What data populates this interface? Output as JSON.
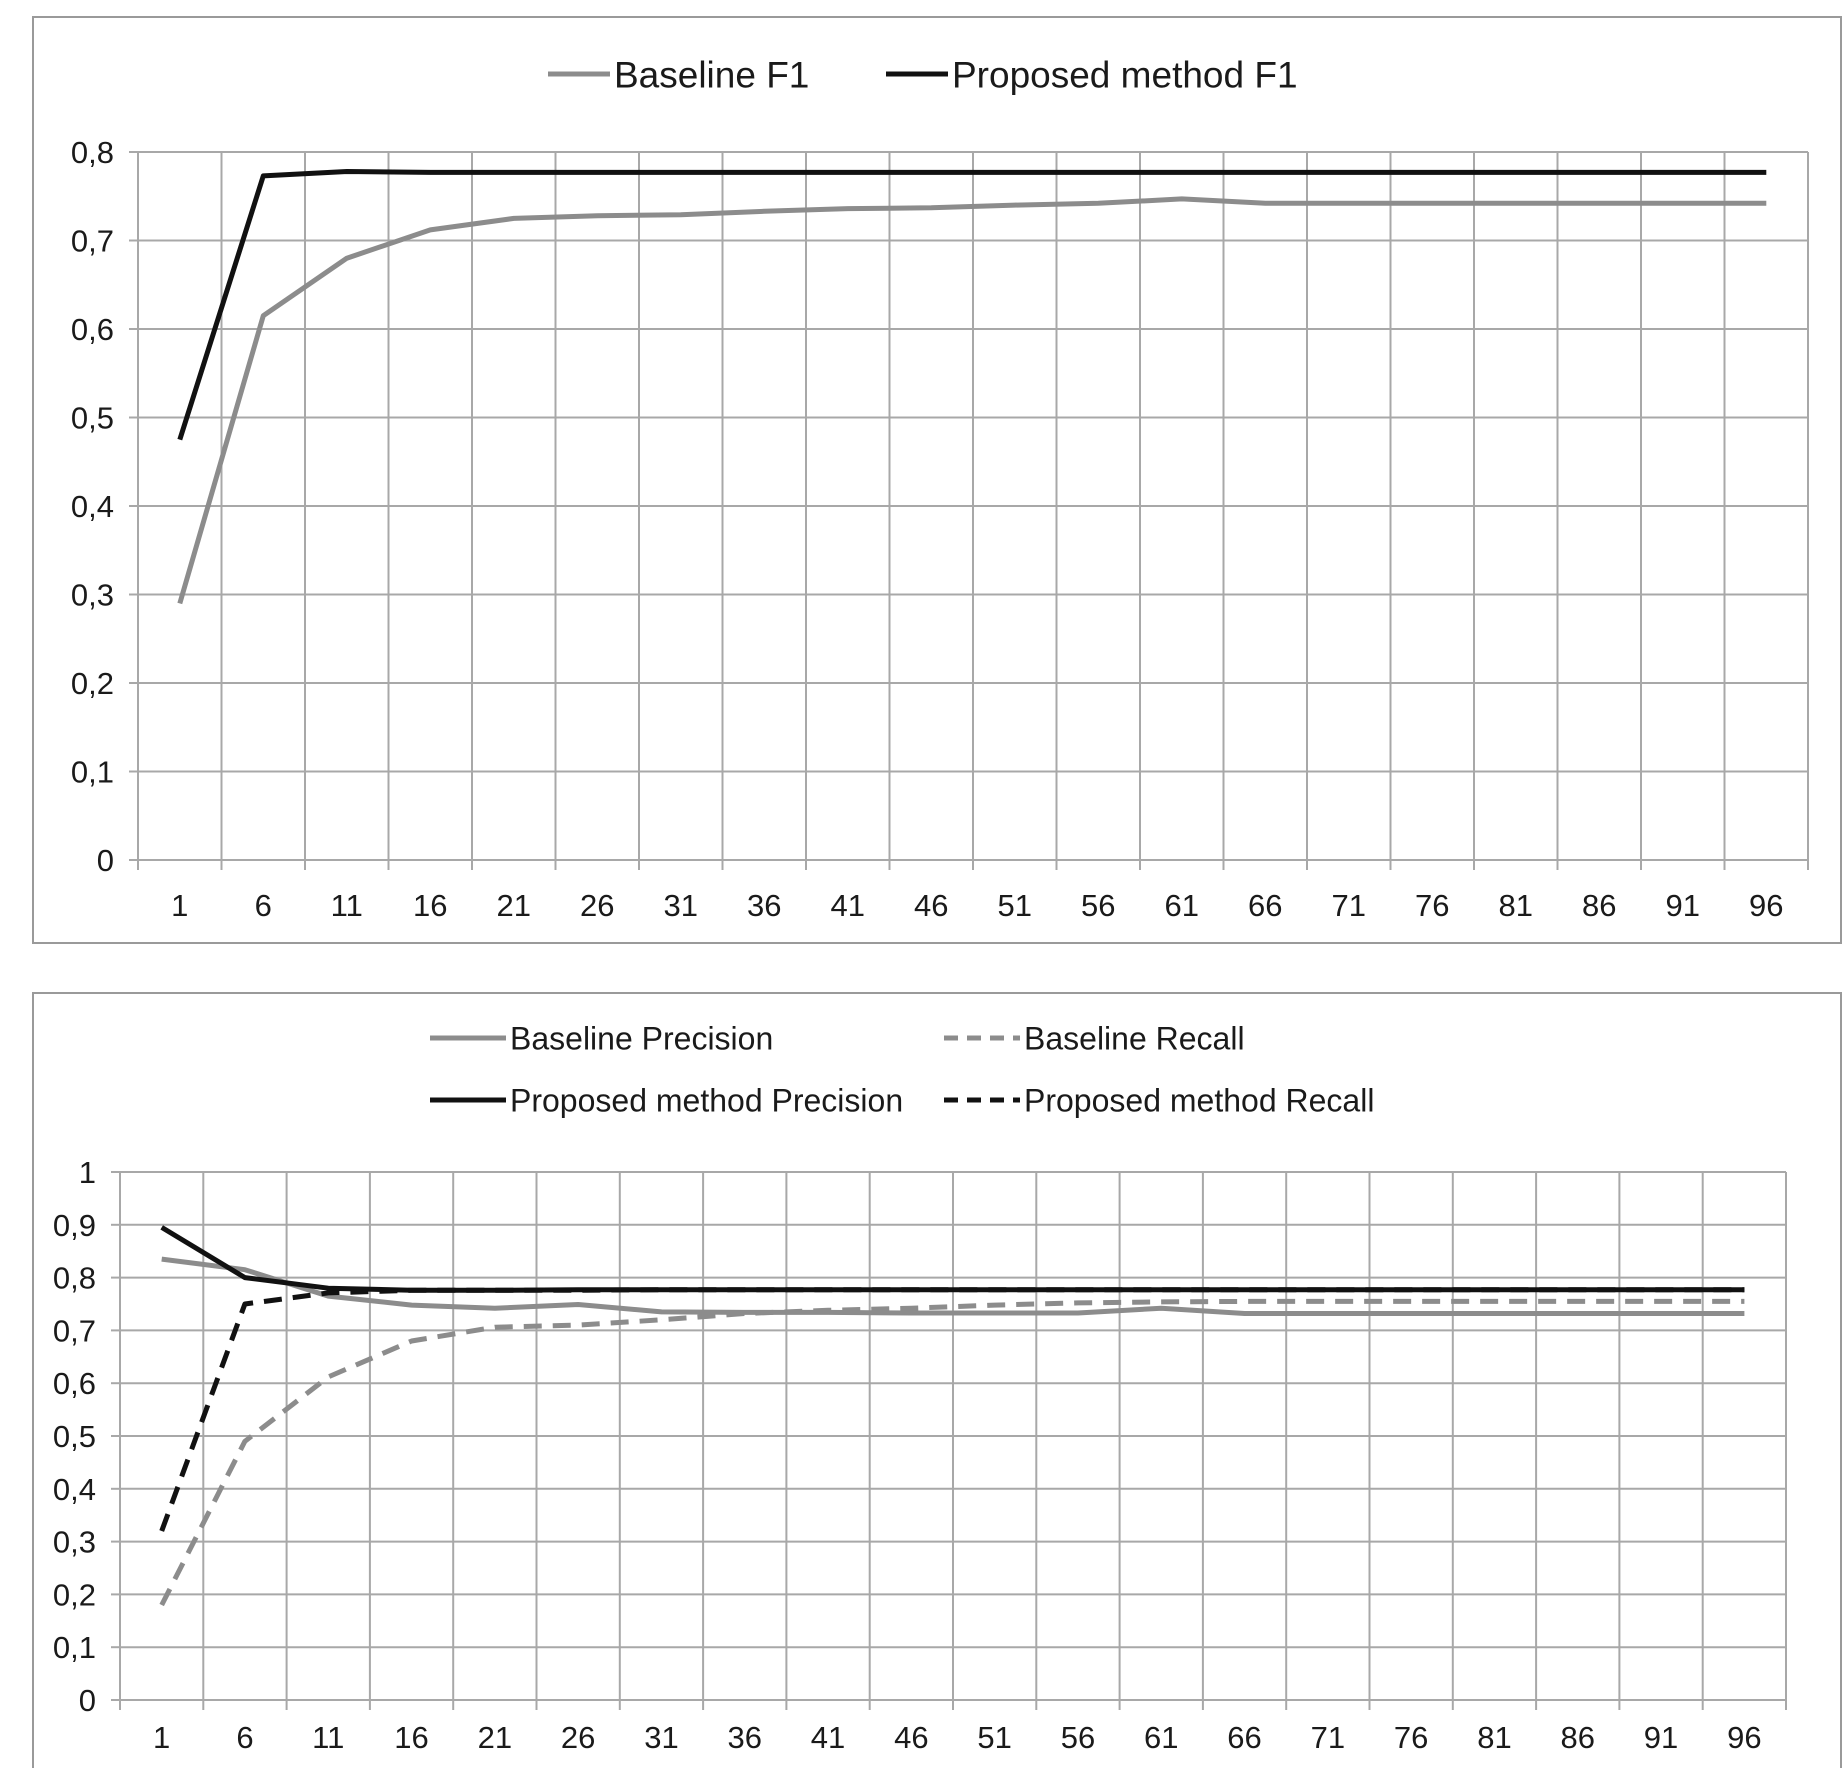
{
  "chart_data": [
    {
      "type": "line",
      "title": "",
      "xlabel": "",
      "ylabel": "",
      "x": [
        1,
        6,
        11,
        16,
        21,
        26,
        31,
        36,
        41,
        46,
        51,
        56,
        61,
        66,
        71,
        76,
        81,
        86,
        91,
        96
      ],
      "x_tick_labels": [
        "1",
        "6",
        "11",
        "16",
        "21",
        "26",
        "31",
        "36",
        "41",
        "46",
        "51",
        "56",
        "61",
        "66",
        "71",
        "76",
        "81",
        "86",
        "91",
        "96"
      ],
      "y_tick_values": [
        0,
        0.1,
        0.2,
        0.3,
        0.4,
        0.5,
        0.6,
        0.7,
        0.8
      ],
      "y_tick_labels": [
        "0",
        "0,1",
        "0,2",
        "0,3",
        "0,4",
        "0,5",
        "0,6",
        "0,7",
        "0,8"
      ],
      "ylim": [
        0,
        0.8
      ],
      "xlim": [
        1,
        96
      ],
      "grid": true,
      "legend_position": "top",
      "series": [
        {
          "name": "Baseline F1",
          "color": "#8c8c8c",
          "dash": "solid",
          "x": [
            1,
            6,
            11,
            16,
            21,
            26,
            31,
            36,
            41,
            46,
            51,
            56,
            61,
            66,
            71,
            76,
            81,
            86,
            91,
            96
          ],
          "values": [
            0.29,
            0.615,
            0.68,
            0.712,
            0.725,
            0.728,
            0.729,
            0.733,
            0.736,
            0.737,
            0.74,
            0.742,
            0.747,
            0.742,
            0.742,
            0.742,
            0.742,
            0.742,
            0.742,
            0.742
          ]
        },
        {
          "name": "Proposed method F1",
          "color": "#111111",
          "dash": "solid",
          "x": [
            1,
            6,
            11,
            16,
            21,
            26,
            31,
            36,
            41,
            46,
            51,
            56,
            61,
            66,
            71,
            76,
            81,
            86,
            91,
            96
          ],
          "values": [
            0.475,
            0.773,
            0.778,
            0.777,
            0.777,
            0.777,
            0.777,
            0.777,
            0.777,
            0.777,
            0.777,
            0.777,
            0.777,
            0.777,
            0.777,
            0.777,
            0.777,
            0.777,
            0.777,
            0.777
          ]
        }
      ]
    },
    {
      "type": "line",
      "title": "",
      "xlabel": "",
      "ylabel": "",
      "x": [
        1,
        6,
        11,
        16,
        21,
        26,
        31,
        36,
        41,
        46,
        51,
        56,
        61,
        66,
        71,
        76,
        81,
        86,
        91,
        96
      ],
      "x_tick_labels": [
        "1",
        "6",
        "11",
        "16",
        "21",
        "26",
        "31",
        "36",
        "41",
        "46",
        "51",
        "56",
        "61",
        "66",
        "71",
        "76",
        "81",
        "86",
        "91",
        "96"
      ],
      "y_tick_values": [
        0,
        0.1,
        0.2,
        0.3,
        0.4,
        0.5,
        0.6,
        0.7,
        0.8,
        0.9,
        1
      ],
      "y_tick_labels": [
        "0",
        "0,1",
        "0,2",
        "0,3",
        "0,4",
        "0,5",
        "0,6",
        "0,7",
        "0,8",
        "0,9",
        "1"
      ],
      "ylim": [
        0,
        1
      ],
      "xlim": [
        1,
        96
      ],
      "grid": true,
      "legend_position": "top",
      "series": [
        {
          "name": "Baseline Precision",
          "color": "#8c8c8c",
          "dash": "solid",
          "x": [
            1,
            6,
            11,
            16,
            21,
            26,
            31,
            36,
            41,
            46,
            51,
            56,
            61,
            66,
            71,
            76,
            81,
            86,
            91,
            96
          ],
          "values": [
            0.835,
            0.815,
            0.765,
            0.748,
            0.742,
            0.749,
            0.735,
            0.734,
            0.734,
            0.733,
            0.733,
            0.733,
            0.742,
            0.732,
            0.732,
            0.732,
            0.732,
            0.732,
            0.732,
            0.732
          ]
        },
        {
          "name": "Baseline Recall",
          "color": "#8c8c8c",
          "dash": "dashed",
          "x": [
            1,
            6,
            11,
            16,
            21,
            26,
            31,
            36,
            41,
            46,
            51,
            56,
            61,
            66,
            71,
            76,
            81,
            86,
            91,
            96
          ],
          "values": [
            0.18,
            0.49,
            0.612,
            0.68,
            0.706,
            0.71,
            0.72,
            0.732,
            0.738,
            0.742,
            0.748,
            0.752,
            0.754,
            0.755,
            0.755,
            0.755,
            0.755,
            0.755,
            0.755,
            0.755
          ]
        },
        {
          "name": "Proposed method Precision",
          "color": "#111111",
          "dash": "solid",
          "x": [
            1,
            6,
            11,
            16,
            21,
            26,
            31,
            36,
            41,
            46,
            51,
            56,
            61,
            66,
            71,
            76,
            81,
            86,
            91,
            96
          ],
          "values": [
            0.895,
            0.8,
            0.78,
            0.776,
            0.776,
            0.777,
            0.777,
            0.777,
            0.777,
            0.777,
            0.777,
            0.777,
            0.777,
            0.777,
            0.777,
            0.777,
            0.777,
            0.777,
            0.777,
            0.777
          ]
        },
        {
          "name": "Proposed method Recall",
          "color": "#111111",
          "dash": "dashed",
          "x": [
            1,
            6,
            11,
            16,
            21,
            26,
            31,
            36,
            41,
            46,
            51,
            56,
            61,
            66,
            71,
            76,
            81,
            86,
            91,
            96
          ],
          "values": [
            0.32,
            0.75,
            0.771,
            0.776,
            0.776,
            0.776,
            0.777,
            0.777,
            0.777,
            0.777,
            0.777,
            0.777,
            0.777,
            0.777,
            0.777,
            0.777,
            0.777,
            0.777,
            0.777,
            0.777
          ]
        }
      ]
    }
  ]
}
